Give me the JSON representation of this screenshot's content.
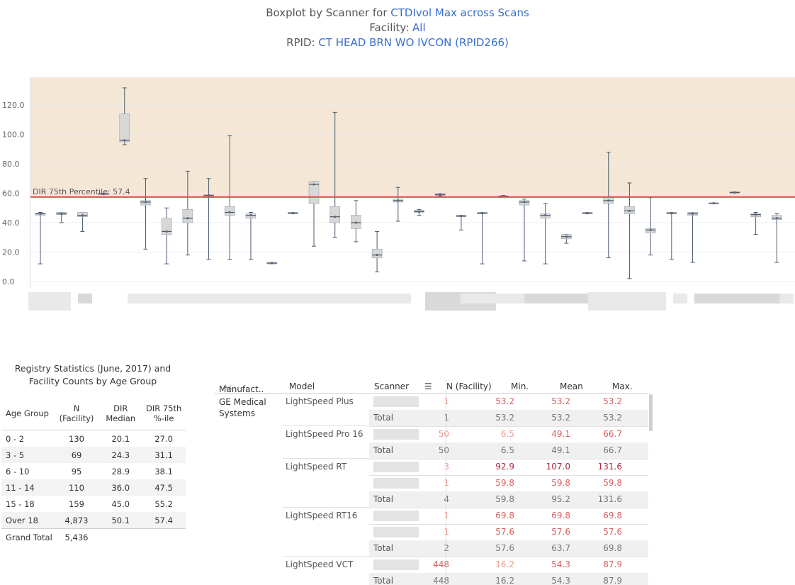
{
  "title": {
    "line1_prefix": "Boxplot by Scanner for ",
    "line1_highlight": "CTDIvol Max across Scans",
    "line2_prefix": "Facility: ",
    "line2_highlight": "All",
    "line3_prefix": "RPID: ",
    "line3_highlight": "CT HEAD BRN WO IVCON (RPID266)"
  },
  "colors": {
    "accent": "#3a6fd0",
    "band": "#f5e7d6",
    "reference_line": "#d9534f",
    "box_fill": "#d7d7d7",
    "whisker": "#4a5a70",
    "point": "#4e6c8f",
    "value_light": "#ec9a8a",
    "value_mid": "#d96060",
    "value_dark": "#a8283f"
  },
  "chart_data": {
    "type": "boxplot",
    "title": "Boxplot by Scanner for CTDIvol Max across Scans",
    "ylim": [
      0,
      140
    ],
    "yticks": [
      "0.0",
      "20.0",
      "40.0",
      "60.0",
      "80.0",
      "100.0",
      "120.0"
    ],
    "ytick_values": [
      0,
      20,
      40,
      60,
      80,
      100,
      120
    ],
    "reference_line": {
      "value": 57.4,
      "label": "DIR 75th Percentile: 57.4"
    },
    "band": [
      57.4,
      140
    ],
    "boxes": [
      {
        "min": 12,
        "q1": 45,
        "med": 46,
        "q3": 46.5,
        "max": 47
      },
      {
        "min": 40,
        "q1": 45.5,
        "med": 46,
        "q3": 47,
        "max": 47
      },
      {
        "min": 34,
        "q1": 44,
        "med": 45,
        "q3": 47,
        "max": 47
      },
      {
        "min": 59,
        "q1": 59,
        "med": 59.5,
        "q3": 60,
        "max": 60
      },
      {
        "min": 93,
        "q1": 95,
        "med": 96,
        "q3": 114,
        "max": 131.6
      },
      {
        "min": 22,
        "q1": 52,
        "med": 54,
        "q3": 55,
        "max": 70
      },
      {
        "min": 12,
        "q1": 32,
        "med": 34,
        "q3": 43,
        "max": 50
      },
      {
        "min": 18,
        "q1": 40,
        "med": 43,
        "q3": 49,
        "max": 75
      },
      {
        "min": 15,
        "q1": 57,
        "med": 58.5,
        "q3": 59,
        "max": 70
      },
      {
        "min": 15,
        "q1": 45,
        "med": 47,
        "q3": 51,
        "max": 99
      },
      {
        "min": 15,
        "q1": 43,
        "med": 45,
        "q3": 46,
        "max": 47
      },
      {
        "min": 12,
        "q1": 12,
        "med": 12.5,
        "q3": 13,
        "max": 13
      },
      {
        "min": 46,
        "q1": 46,
        "med": 46.5,
        "q3": 47,
        "max": 47
      },
      {
        "min": 24,
        "q1": 53,
        "med": 66,
        "q3": 68,
        "max": 68
      },
      {
        "min": 30,
        "q1": 40,
        "med": 44,
        "q3": 51,
        "max": 115
      },
      {
        "min": 27,
        "q1": 36,
        "med": 40,
        "q3": 45,
        "max": 55
      },
      {
        "min": 6.5,
        "q1": 16,
        "med": 18,
        "q3": 22,
        "max": 34
      },
      {
        "min": 41,
        "q1": 54,
        "med": 55,
        "q3": 56,
        "max": 64
      },
      {
        "min": 45,
        "q1": 47,
        "med": 47.5,
        "q3": 48.5,
        "max": 49
      },
      {
        "min": 58,
        "q1": 58.5,
        "med": 59,
        "q3": 60,
        "max": 60
      },
      {
        "min": 35,
        "q1": 44,
        "med": 44.5,
        "q3": 45,
        "max": 45
      },
      {
        "min": 12,
        "q1": 46,
        "med": 46.5,
        "q3": 47,
        "max": 47
      },
      {
        "min": 57.6,
        "q1": 57.8,
        "med": 58,
        "q3": 58.2,
        "max": 58.5
      },
      {
        "min": 14,
        "q1": 52,
        "med": 54,
        "q3": 55,
        "max": 56
      },
      {
        "min": 12,
        "q1": 43,
        "med": 45,
        "q3": 46,
        "max": 53
      },
      {
        "min": 26,
        "q1": 29,
        "med": 30.5,
        "q3": 32,
        "max": 32
      },
      {
        "min": 46,
        "q1": 46,
        "med": 46.5,
        "q3": 47,
        "max": 47
      },
      {
        "min": 16.2,
        "q1": 53,
        "med": 55,
        "q3": 57,
        "max": 87.9
      },
      {
        "min": 2,
        "q1": 46,
        "med": 48,
        "q3": 51,
        "max": 67
      },
      {
        "min": 18,
        "q1": 33,
        "med": 35,
        "q3": 36,
        "max": 57
      },
      {
        "min": 15,
        "q1": 46,
        "med": 46.5,
        "q3": 47,
        "max": 47
      },
      {
        "min": 13,
        "q1": 45,
        "med": 46,
        "q3": 47,
        "max": 47
      },
      {
        "min": 53,
        "q1": 53,
        "med": 53.2,
        "q3": 53.5,
        "max": 53.5
      },
      {
        "min": 60,
        "q1": 60,
        "med": 60.5,
        "q3": 61,
        "max": 61
      },
      {
        "min": 32,
        "q1": 44,
        "med": 45.5,
        "q3": 46,
        "max": 47
      },
      {
        "min": 13,
        "q1": 42,
        "med": 43,
        "q3": 45,
        "max": 46
      }
    ]
  },
  "stats": {
    "title_line1": "Registry Statistics (June, 2017) and",
    "title_line2": "Facility Counts by Age Group",
    "headers": {
      "age_group": "Age Group",
      "n_line1": "N",
      "n_line2": "(Facility)",
      "median_line1": "DIR",
      "median_line2": "Median",
      "p75_line1": "DIR 75th",
      "p75_line2": "%-ile"
    },
    "rows": [
      {
        "age": "0 - 2",
        "n": "130",
        "median": "20.1",
        "p75": "27.0"
      },
      {
        "age": "3 - 5",
        "n": "69",
        "median": "24.3",
        "p75": "31.1"
      },
      {
        "age": "6 - 10",
        "n": "95",
        "median": "28.9",
        "p75": "38.1"
      },
      {
        "age": "11 - 14",
        "n": "110",
        "median": "36.0",
        "p75": "47.5"
      },
      {
        "age": "15 - 18",
        "n": "159",
        "median": "45.0",
        "p75": "55.2"
      },
      {
        "age": "Over 18",
        "n": "4,873",
        "median": "50.1",
        "p75": "57.4"
      }
    ],
    "grand_total": {
      "label": "Grand Total",
      "n": "5,436"
    }
  },
  "scanner_table": {
    "headers": {
      "manufacturer": "Manufact..",
      "model": "Model",
      "scanner": "Scanner",
      "n": "N (Facility)",
      "min": "Min.",
      "mean": "Mean",
      "max": "Max."
    },
    "manufacturer_line1": "GE Medical",
    "manufacturer_line2": "Systems",
    "total_label": "Total",
    "groups": [
      {
        "model": "LightSpeed Plus",
        "rows": [
          {
            "n": "1",
            "min": "53.2",
            "mean": "53.2",
            "max": "53.2",
            "nc": "l",
            "minc": "m",
            "meanc": "m",
            "maxc": "m"
          }
        ],
        "total": {
          "n": "1",
          "min": "53.2",
          "mean": "53.2",
          "max": "53.2"
        }
      },
      {
        "model": "LightSpeed Pro 16",
        "rows": [
          {
            "n": "50",
            "min": "6.5",
            "mean": "49.1",
            "max": "66.7",
            "nc": "l",
            "minc": "l",
            "meanc": "m",
            "maxc": "m"
          }
        ],
        "total": {
          "n": "50",
          "min": "6.5",
          "mean": "49.1",
          "max": "66.7"
        }
      },
      {
        "model": "LightSpeed RT",
        "rows": [
          {
            "n": "3",
            "min": "92.9",
            "mean": "107.0",
            "max": "131.6",
            "nc": "l",
            "minc": "d",
            "meanc": "d",
            "maxc": "d"
          },
          {
            "n": "1",
            "min": "59.8",
            "mean": "59.8",
            "max": "59.8",
            "nc": "l",
            "minc": "m",
            "meanc": "m",
            "maxc": "m"
          }
        ],
        "total": {
          "n": "4",
          "min": "59.8",
          "mean": "95.2",
          "max": "131.6"
        }
      },
      {
        "model": "LightSpeed RT16",
        "rows": [
          {
            "n": "1",
            "min": "69.8",
            "mean": "69.8",
            "max": "69.8",
            "nc": "l",
            "minc": "m",
            "meanc": "m",
            "maxc": "m"
          },
          {
            "n": "1",
            "min": "57.6",
            "mean": "57.6",
            "max": "57.6",
            "nc": "l",
            "minc": "m",
            "meanc": "m",
            "maxc": "m"
          }
        ],
        "total": {
          "n": "2",
          "min": "57.6",
          "mean": "63.7",
          "max": "69.8"
        }
      },
      {
        "model": "LightSpeed VCT",
        "rows": [
          {
            "n": "448",
            "min": "16.2",
            "mean": "54.3",
            "max": "87.9",
            "nc": "m",
            "minc": "l",
            "meanc": "m",
            "maxc": "m"
          }
        ],
        "total": {
          "n": "448",
          "min": "16.2",
          "mean": "54.3",
          "max": "87.9"
        }
      }
    ]
  }
}
